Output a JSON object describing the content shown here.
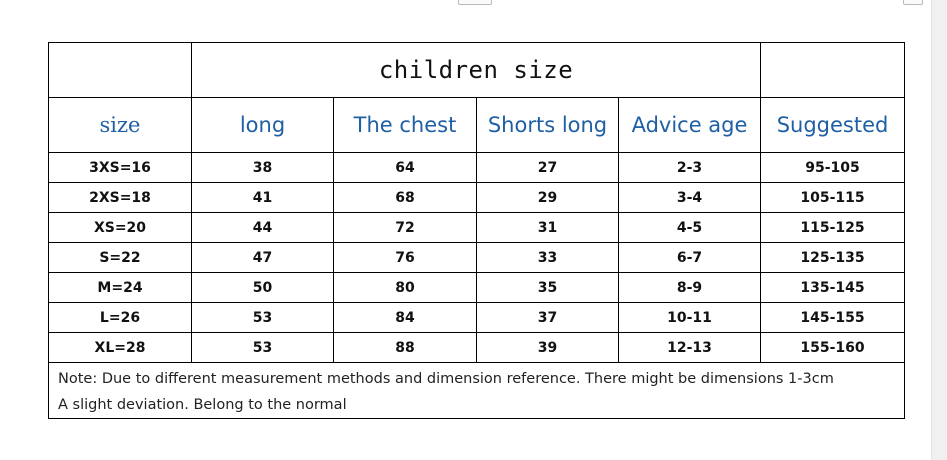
{
  "table": {
    "title": "children size",
    "headers": [
      "size",
      "long",
      "The chest",
      "Shorts long",
      "Advice age",
      "Suggested"
    ],
    "rows": [
      [
        "3XS=16",
        "38",
        "64",
        "27",
        "2-3",
        "95-105"
      ],
      [
        "2XS=18",
        "41",
        "68",
        "29",
        "3-4",
        "105-115"
      ],
      [
        "XS=20",
        "44",
        "72",
        "31",
        "4-5",
        "115-125"
      ],
      [
        "S=22",
        "47",
        "76",
        "33",
        "6-7",
        "125-135"
      ],
      [
        "M=24",
        "50",
        "80",
        "35",
        "8-9",
        "135-145"
      ],
      [
        "L=26",
        "53",
        "84",
        "37",
        "10-11",
        "145-155"
      ],
      [
        "XL=28",
        "53",
        "88",
        "39",
        "12-13",
        "155-160"
      ]
    ],
    "note_line1": "Note: Due to different measurement methods and dimension reference. There might be dimensions 1-3cm",
    "note_line2": "A slight deviation. Belong to the normal"
  },
  "colors": {
    "header_text": "#1f5fa4",
    "border": "#000000"
  }
}
